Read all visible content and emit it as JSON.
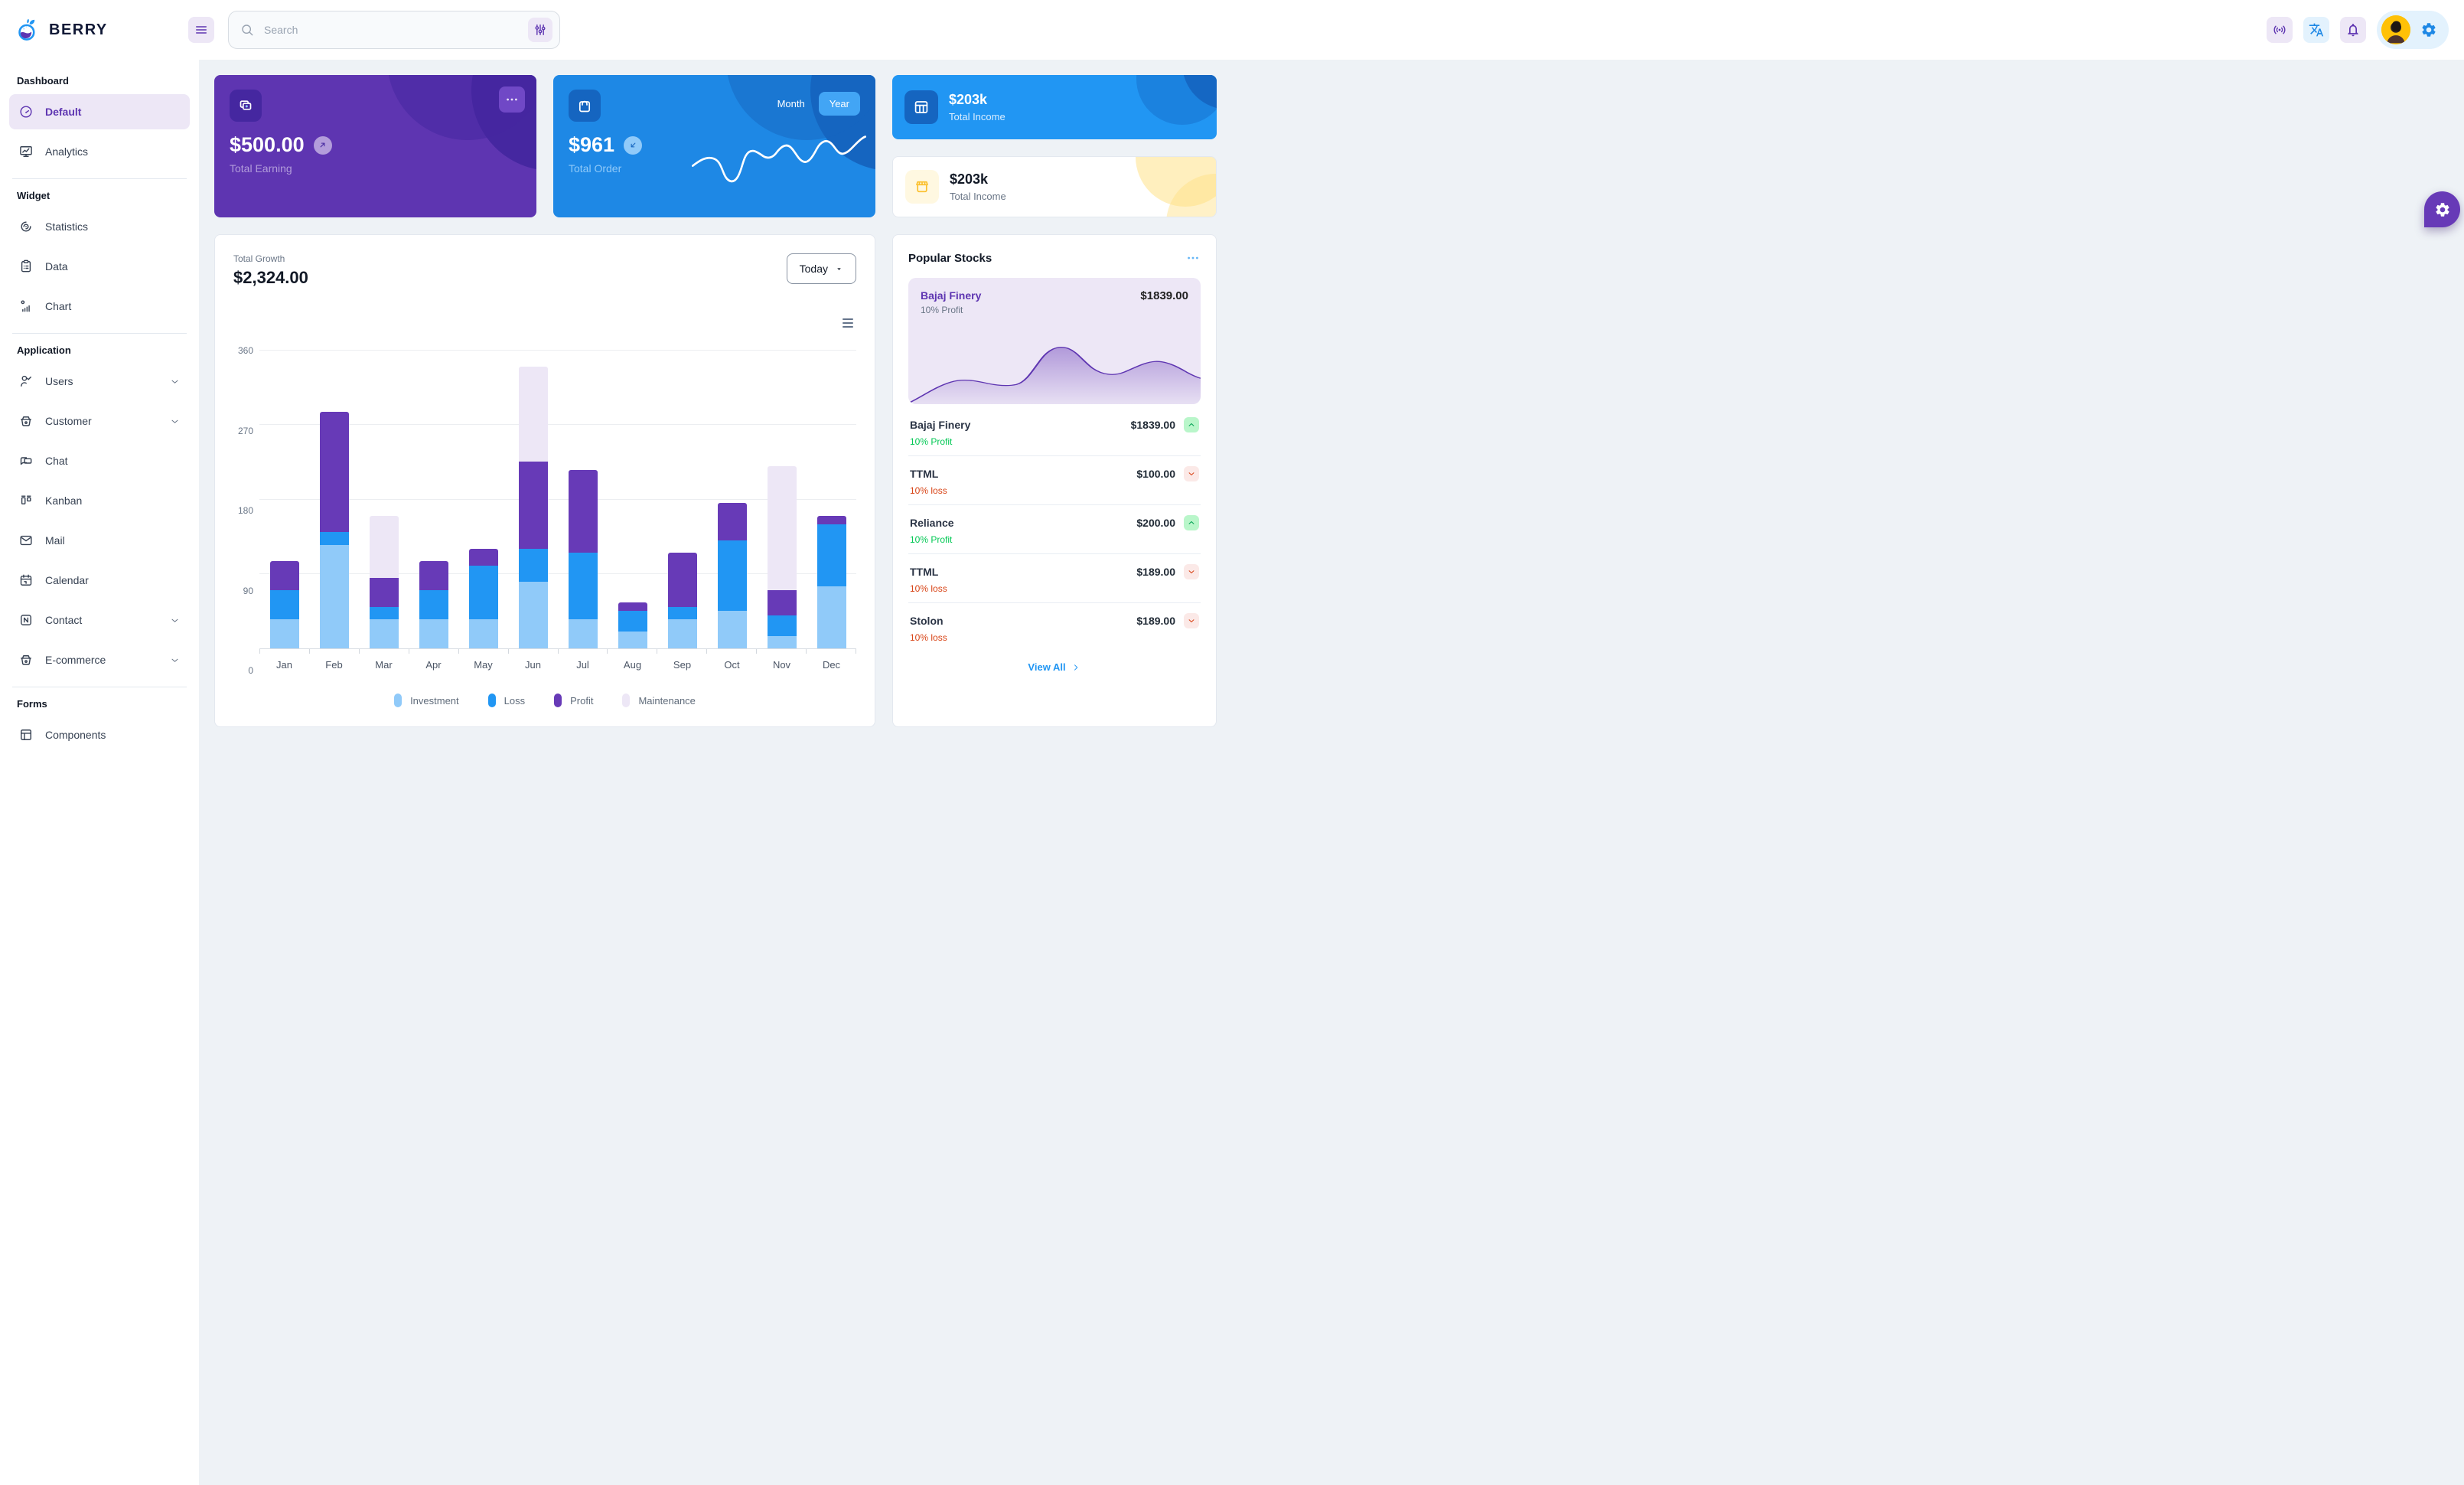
{
  "brand": {
    "name": "BERRY"
  },
  "header": {
    "search": {
      "placeholder": "Search"
    },
    "icons": [
      "menu",
      "search",
      "sliders",
      "broadcast",
      "translate",
      "notifications",
      "settings",
      "avatar"
    ]
  },
  "sidebar": {
    "sections": [
      {
        "title": "Dashboard",
        "items": [
          {
            "label": "Default",
            "icon": "gauge",
            "active": true
          },
          {
            "label": "Analytics",
            "icon": "monitor"
          }
        ]
      },
      {
        "title": "Widget",
        "items": [
          {
            "label": "Statistics",
            "icon": "spiral"
          },
          {
            "label": "Data",
            "icon": "clipboard"
          },
          {
            "label": "Chart",
            "icon": "chartbar"
          }
        ]
      },
      {
        "title": "Application",
        "items": [
          {
            "label": "Users",
            "icon": "usercheck",
            "expandable": true
          },
          {
            "label": "Customer",
            "icon": "basket",
            "expandable": true
          },
          {
            "label": "Chat",
            "icon": "chat"
          },
          {
            "label": "Kanban",
            "icon": "kanban"
          },
          {
            "label": "Mail",
            "icon": "mail"
          },
          {
            "label": "Calendar",
            "icon": "calendar"
          },
          {
            "label": "Contact",
            "icon": "contact",
            "expandable": true
          },
          {
            "label": "E-commerce",
            "icon": "basket",
            "expandable": true
          }
        ]
      },
      {
        "title": "Forms",
        "items": [
          {
            "label": "Components",
            "icon": "layout"
          }
        ]
      }
    ]
  },
  "cards": {
    "earning": {
      "value": "$500.00",
      "label": "Total Earning",
      "trend": "up"
    },
    "order": {
      "value": "$961",
      "label": "Total Order",
      "trend": "down",
      "toggle_inactive": "Month",
      "toggle_active": "Year"
    },
    "income_blue": {
      "value": "$203k",
      "label": "Total Income"
    },
    "income_light": {
      "value": "$203k",
      "label": "Total Income"
    }
  },
  "growth": {
    "label": "Total Growth",
    "value": "$2,324.00",
    "period": "Today"
  },
  "chart_data": {
    "type": "bar",
    "stacked": true,
    "title": "Total Growth",
    "categories": [
      "Jan",
      "Feb",
      "Mar",
      "Apr",
      "May",
      "Jun",
      "Jul",
      "Aug",
      "Sep",
      "Oct",
      "Nov",
      "Dec"
    ],
    "series": [
      {
        "name": "Investment",
        "color": "#90caf9",
        "values": [
          35,
          125,
          35,
          35,
          35,
          80,
          35,
          20,
          35,
          45,
          15,
          75
        ]
      },
      {
        "name": "Loss",
        "color": "#2196f3",
        "values": [
          35,
          15,
          15,
          35,
          65,
          40,
          80,
          25,
          15,
          85,
          25,
          75
        ]
      },
      {
        "name": "Profit",
        "color": "#673ab7",
        "values": [
          35,
          145,
          35,
          35,
          20,
          105,
          100,
          10,
          65,
          45,
          30,
          10
        ]
      },
      {
        "name": "Maintenance",
        "color": "#ede7f6",
        "values": [
          0,
          0,
          75,
          0,
          0,
          115,
          0,
          0,
          0,
          0,
          150,
          0
        ]
      }
    ],
    "ylim": [
      0,
      360
    ],
    "yticks": [
      0,
      90,
      180,
      270,
      360
    ],
    "grid": true,
    "legend_position": "bottom"
  },
  "stocks": {
    "title": "Popular Stocks",
    "featured": {
      "name": "Bajaj Finery",
      "value": "$1839.00",
      "sub": "10% Profit"
    },
    "items": [
      {
        "name": "Bajaj Finery",
        "value": "$1839.00",
        "sub": "10% Profit",
        "direction": "up"
      },
      {
        "name": "TTML",
        "value": "$100.00",
        "sub": "10% loss",
        "direction": "down"
      },
      {
        "name": "Reliance",
        "value": "$200.00",
        "sub": "10% Profit",
        "direction": "up"
      },
      {
        "name": "TTML",
        "value": "$189.00",
        "sub": "10% loss",
        "direction": "down"
      },
      {
        "name": "Stolon",
        "value": "$189.00",
        "sub": "10% loss",
        "direction": "down"
      }
    ],
    "view_all": "View All"
  },
  "colors": {
    "primary": "#2196f3",
    "primary_dark": "#1e88e5",
    "primary_800": "#1565c0",
    "secondary": "#673ab7",
    "secondary_dark": "#5e35b1",
    "secondary_800": "#4527a0",
    "secondary_light": "#ede7f6",
    "success": "#00c853",
    "error": "#d84315",
    "warning": "#ffc107",
    "bg": "#eef2f6"
  }
}
